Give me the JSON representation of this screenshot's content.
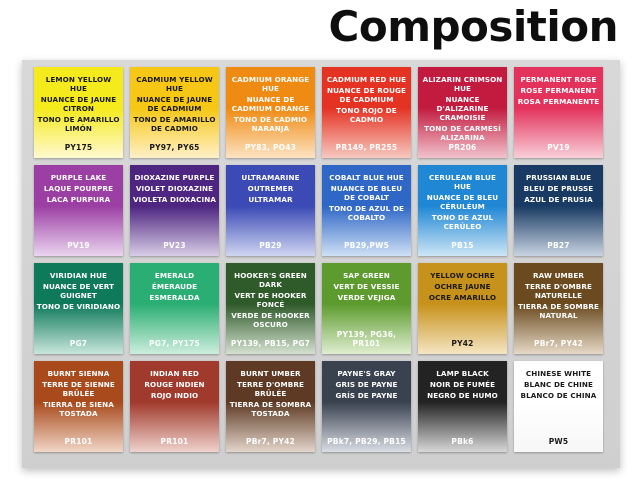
{
  "title": "Composition",
  "swatches": [
    {
      "en": "LEMON YELLOW HUE",
      "fr": "NUANCE DE JAUNE CITRON",
      "es": "TONO DE AMARILLO LIMÓN",
      "code": "PY175",
      "top": "#f4ea1c",
      "bottom": "#fff9d0",
      "text": "dark"
    },
    {
      "en": "CADMIUM YELLOW HUE",
      "fr": "NUANCE DE JAUNE DE CADMIUM",
      "es": "TONO DE AMARILLO DE CADMIO",
      "code": "PY97, PY65",
      "top": "#f6c714",
      "bottom": "#fff0c8",
      "text": "dark"
    },
    {
      "en": "CADMIUM ORANGE HUE",
      "fr": "NUANCE DE CADMIUM ORANGE",
      "es": "TONO DE CADMIO NARANJA",
      "code": "PY83, PO43",
      "top": "#ef8a12",
      "bottom": "#fde3c2",
      "text": "light"
    },
    {
      "en": "CADMIUM RED HUE",
      "fr": "NUANCE DE ROUGE DE CADMIUM",
      "es": "TONO ROJO DE CADMIO",
      "code": "PR149, PR255",
      "top": "#e43323",
      "bottom": "#f7c9c0",
      "text": "light"
    },
    {
      "en": "ALIZARIN CRIMSON HUE",
      "fr": "NUANCE D'ALIZARINE CRAMOISIE",
      "es": "TONO DE CARMESÍ ALIZARINA",
      "code": "PR206",
      "top": "#c21b3f",
      "bottom": "#f2c3cd",
      "text": "light"
    },
    {
      "en": "PERMANENT ROSE",
      "fr": "ROSE PERMANENT",
      "es": "ROSA PERMANENTE",
      "code": "PV19",
      "top": "#e3325c",
      "bottom": "#f9cfd9",
      "text": "light"
    },
    {
      "en": "PURPLE LAKE",
      "fr": "LAQUE POURPRE",
      "es": "LACA PURPURA",
      "code": "PV19",
      "top": "#9c3fa4",
      "bottom": "#ead5ef",
      "text": "light"
    },
    {
      "en": "DIOXAZINE PURPLE",
      "fr": "VIOLET DIOXAZINE",
      "es": "VIOLETA DIOXACINA",
      "code": "PV23",
      "top": "#4e2581",
      "bottom": "#d8cde6",
      "text": "light"
    },
    {
      "en": "ULTRAMARINE",
      "fr": "OUTREMER",
      "es": "ULTRAMAR",
      "code": "PB29",
      "top": "#3b4ab5",
      "bottom": "#cfd6f2",
      "text": "light"
    },
    {
      "en": "COBALT BLUE HUE",
      "fr": "NUANCE DE BLEU DE COBALT",
      "es": "TONO DE AZUL DE COBALTO",
      "code": "PB29,PW5",
      "top": "#2e67c6",
      "bottom": "#cfe0f5",
      "text": "light"
    },
    {
      "en": "CERULEAN BLUE HUE",
      "fr": "NUANCE DE BLEU CÉRULÉUM",
      "es": "TONO DE AZUL CERÚLEO",
      "code": "PB15",
      "top": "#2087d4",
      "bottom": "#cde6f6",
      "text": "light"
    },
    {
      "en": "PRUSSIAN BLUE",
      "fr": "BLEU DE PRUSSE",
      "es": "AZUL DE PRUSIA",
      "code": "PB27",
      "top": "#193a63",
      "bottom": "#c9d4e2",
      "text": "light"
    },
    {
      "en": "VIRIDIAN HUE",
      "fr": "NUANCE DE VERT GUIGNET",
      "es": "TONO DE VIRIDIANO",
      "code": "PG7",
      "top": "#0f7a5a",
      "bottom": "#c8e6dc",
      "text": "light"
    },
    {
      "en": "EMERALD",
      "fr": "ÉMERAUDE",
      "es": "ESMERALDA",
      "code": "PG7, PY175",
      "top": "#2bae73",
      "bottom": "#cdeedd",
      "text": "light"
    },
    {
      "en": "HOOKER'S GREEN DARK",
      "fr": "VERT DE HOOKER FONCÉ",
      "es": "VERDE DE HOOKER OSCURO",
      "code": "PY139, PB15, PG7",
      "top": "#2f5a2a",
      "bottom": "#d4e1cf",
      "text": "light"
    },
    {
      "en": "SAP GREEN",
      "fr": "VERT DE VESSIE",
      "es": "VERDE VEJIGA",
      "code": "PY139, PG36, PR101",
      "top": "#5d9b2e",
      "bottom": "#e0eed0",
      "text": "light"
    },
    {
      "en": "YELLOW OCHRE",
      "fr": "OCHRE JAUNE",
      "es": "OCRE AMARILLO",
      "code": "PY42",
      "top": "#c7921b",
      "bottom": "#f5e5c3",
      "text": "dark"
    },
    {
      "en": "RAW UMBER",
      "fr": "TERRE D'OMBRE NATURELLE",
      "es": "TIERRA DE SOMBRE NATURAL",
      "code": "PBr7, PY42",
      "top": "#6b4a1f",
      "bottom": "#e6d9c6",
      "text": "light"
    },
    {
      "en": "BURNT SIENNA",
      "fr": "TERRE DE SIENNE BRÛLÉE",
      "es": "TIERRA DE SIENA TOSTADA",
      "code": "PR101",
      "top": "#a84a1c",
      "bottom": "#f1d6c6",
      "text": "light"
    },
    {
      "en": "INDIAN RED",
      "fr": "ROUGE INDIEN",
      "es": "ROJO INDIO",
      "code": "PR101",
      "top": "#a03a2c",
      "bottom": "#efd2cc",
      "text": "light"
    },
    {
      "en": "BURNT UMBER",
      "fr": "TERRE D'OMBRE BRÛLÉE",
      "es": "TIERRA DE SOMBRA TOSTADA",
      "code": "PBr7, PY42",
      "top": "#5e3a24",
      "bottom": "#e3d5cb",
      "text": "light"
    },
    {
      "en": "PAYNE'S GRAY",
      "fr": "GRIS DE PAYNE",
      "es": "GRÍS DE PAYNE",
      "code": "PBk7, PB29, PB15",
      "top": "#3a4250",
      "bottom": "#d9dde4",
      "text": "light"
    },
    {
      "en": "LAMP BLACK",
      "fr": "NOIR DE FUMÉE",
      "es": "NEGRO DE HUMO",
      "code": "PBk6",
      "top": "#232323",
      "bottom": "#d8d8d8",
      "text": "light"
    },
    {
      "en": "CHINESE WHITE",
      "fr": "BLANC DE CHINE",
      "es": "BLANCO DE CHINA",
      "code": "PW5",
      "top": "#ffffff",
      "bottom": "#f7f7f7",
      "text": "dark"
    }
  ]
}
